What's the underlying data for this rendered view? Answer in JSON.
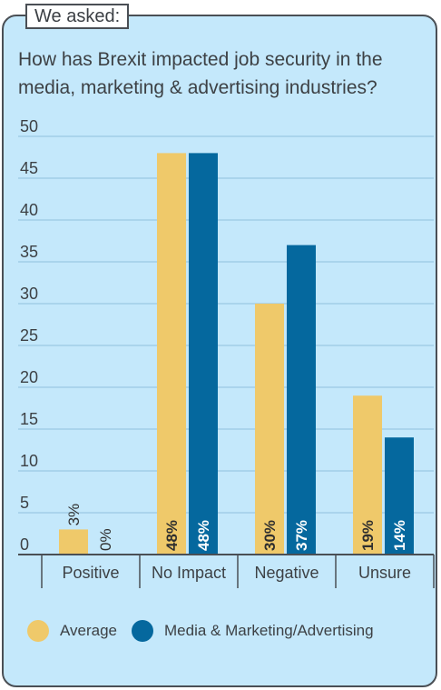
{
  "header": {
    "tag": "We asked:",
    "question": "How has Brexit impacted job security in the media, marketing & advertising industries?"
  },
  "colors": {
    "average": "#efc96a",
    "media": "#05689e",
    "grid": "#8fc1dd",
    "axis": "#4a4f55",
    "background": "#c4e8fb"
  },
  "chart_data": {
    "type": "bar",
    "categories": [
      "Positive",
      "No Impact",
      "Negative",
      "Unsure"
    ],
    "series": [
      {
        "name": "Average",
        "values": [
          3,
          48,
          30,
          19
        ],
        "labels": [
          "3%",
          "48%",
          "30%",
          "19%"
        ]
      },
      {
        "name": "Media & Marketing/Advertising",
        "values": [
          0,
          48,
          37,
          14
        ],
        "labels": [
          "0%",
          "48%",
          "37%",
          "14%"
        ]
      }
    ],
    "yticks": [
      0,
      5,
      10,
      15,
      20,
      25,
      30,
      35,
      40,
      45,
      50
    ],
    "ylim": [
      0,
      50
    ],
    "grid": true,
    "legend": "bottom"
  }
}
